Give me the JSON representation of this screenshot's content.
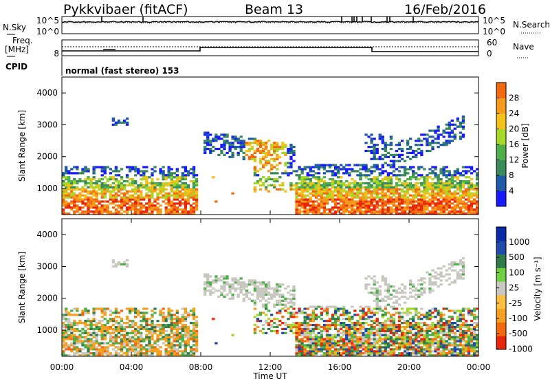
{
  "header": {
    "station": "Pykkvibaer (fitACF)",
    "beam": "Beam 13",
    "date": "16/Feb/2016"
  },
  "noise_panel": {
    "left_label": "N.Sky",
    "right_label": "N.Search",
    "left_ticks": [
      "10^5",
      "10^0"
    ],
    "right_ticks": [
      "10^5",
      "10^0"
    ]
  },
  "freq_panel": {
    "left_label_line1": "Freq.",
    "left_label_line2": "[MHz]",
    "right_label": "Nave",
    "left_tick": "8",
    "right_ticks": [
      "60",
      "0"
    ],
    "cpid_label": "CPID",
    "program": "normal (fast stereo) 153"
  },
  "colors": {
    "power": [
      "#1a1aff",
      "#1f5aa8",
      "#3a8a5a",
      "#4fb04a",
      "#a6d82a",
      "#f2c21a",
      "#f59a1a",
      "#f26a10",
      "#e8260a"
    ],
    "velocity": [
      "#e8260a",
      "#f26a10",
      "#f5a020",
      "#c8c8c0",
      "#4fb04a",
      "#2f7a4a",
      "#1f4aa8"
    ]
  },
  "chart_data": [
    {
      "type": "heatmap",
      "name": "power",
      "ylabel": "Slant Range [km]",
      "yticks": [
        "1000",
        "2000",
        "3000",
        "4000"
      ],
      "ylim": [
        180,
        4500
      ],
      "xlabel": "",
      "x_ticks": [],
      "colorbar_label": "Power [dB]",
      "colorbar_ticks": [
        "4",
        "8",
        "12",
        "16",
        "20",
        "24",
        "28"
      ]
    },
    {
      "type": "heatmap",
      "name": "velocity",
      "ylabel": "Slant Range [km]",
      "yticks": [
        "1000",
        "2000",
        "3000",
        "4000"
      ],
      "ylim": [
        180,
        4500
      ],
      "xlabel": "Time UT",
      "x_ticks": [
        "00:00",
        "04:00",
        "08:00",
        "12:00",
        "16:00",
        "20:00",
        "00:00"
      ],
      "colorbar_label": "Velocity [m s⁻¹]",
      "colorbar_ticks": [
        "1000",
        "500",
        "100",
        "25",
        "-25",
        "-100",
        "-500",
        "-1000"
      ]
    }
  ]
}
